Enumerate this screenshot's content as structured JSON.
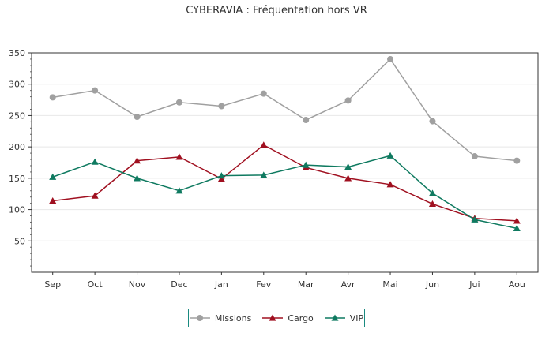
{
  "chart_data": {
    "type": "line",
    "title": "CYBERAVIA : Fréquentation hors VR",
    "xlabel": "",
    "ylabel": "",
    "categories": [
      "Sep",
      "Oct",
      "Nov",
      "Dec",
      "Jan",
      "Fev",
      "Mar",
      "Avr",
      "Mai",
      "Jun",
      "Jui",
      "Aou"
    ],
    "ylim": [
      0,
      350
    ],
    "yticks": [
      50,
      100,
      150,
      200,
      250,
      300,
      350
    ],
    "grid": "horizontal",
    "legend_position": "bottom",
    "series": [
      {
        "name": "Missions",
        "color": "#a0a0a0",
        "marker": "circle",
        "values": [
          279,
          290,
          248,
          271,
          265,
          285,
          243,
          274,
          340,
          241,
          185,
          178
        ]
      },
      {
        "name": "Cargo",
        "color": "#a01020",
        "marker": "triangle",
        "values": [
          114,
          122,
          178,
          184,
          149,
          203,
          167,
          150,
          140,
          109,
          86,
          82
        ]
      },
      {
        "name": "VIP",
        "color": "#0f7a60",
        "marker": "triangle",
        "values": [
          152,
          176,
          150,
          130,
          154,
          155,
          171,
          168,
          186,
          126,
          84,
          70
        ]
      }
    ]
  }
}
